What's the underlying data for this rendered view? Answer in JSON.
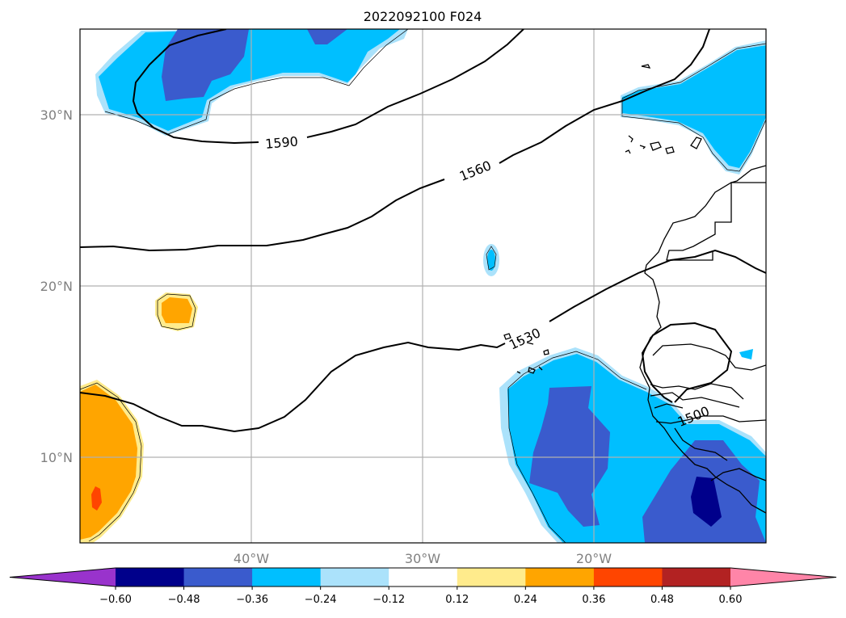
{
  "title": "2022092100 F024",
  "latitude_labels": [
    "30°N",
    "20°N",
    "10°N"
  ],
  "longitude_labels": [
    "40°W",
    "30°W",
    "20°W"
  ],
  "contour_labels": [
    "1590",
    "1560",
    "1530",
    "1500"
  ],
  "colorbar": {
    "tick_labels": [
      "−0.60",
      "−0.48",
      "−0.36",
      "−0.24",
      "−0.12",
      "0.12",
      "0.24",
      "0.36",
      "0.48",
      "0.60"
    ],
    "colors": [
      "#9933cc",
      "#00008b",
      "#3a5bcd",
      "#00bfff",
      "#abe2fb",
      "#ffffff",
      "#ffeb8c",
      "#ffa500",
      "#ff4500",
      "#b22222",
      "#ff85a8"
    ]
  }
}
